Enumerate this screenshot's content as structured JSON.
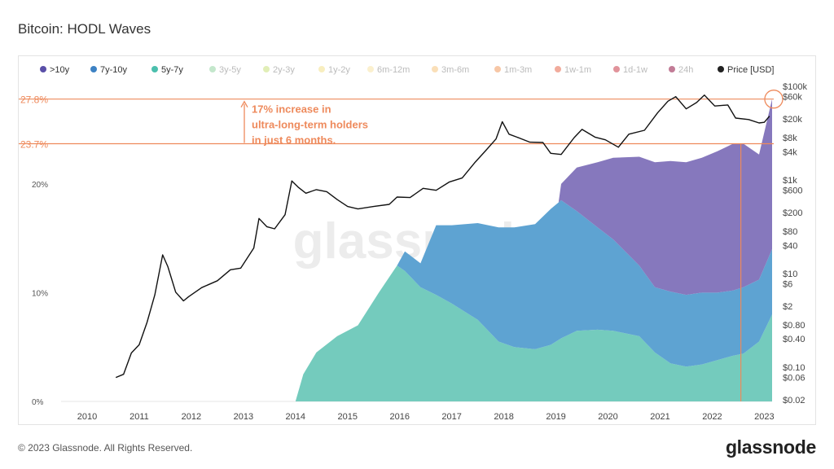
{
  "header": {
    "title": "Bitcoin: HODL Waves"
  },
  "footer": {
    "copyright": "© 2023 Glassnode. All Rights Reserved.",
    "logo_text": "glassnode"
  },
  "watermark": "glassnode",
  "annotation": {
    "lines": [
      "17% increase in",
      "ultra-long-term holders",
      "in just 6 months."
    ],
    "color": "#ee8a5c"
  },
  "chart_data": {
    "type": "area",
    "title": "Bitcoin: HODL Waves",
    "legend": {
      "position": "top",
      "items": [
        {
          "label": ">10y",
          "color": "#5a4fa8",
          "active": true
        },
        {
          "label": "7y-10y",
          "color": "#3d82c4",
          "active": true
        },
        {
          "label": "5y-7y",
          "color": "#4bbfad",
          "active": true
        },
        {
          "label": "3y-5y",
          "color": "#94d3a2",
          "active": false
        },
        {
          "label": "2y-3y",
          "color": "#c8e07c",
          "active": false
        },
        {
          "label": "1y-2y",
          "color": "#f3e08a",
          "active": false
        },
        {
          "label": "6m-12m",
          "color": "#f7e3a5",
          "active": false
        },
        {
          "label": "3m-6m",
          "color": "#f6c47d",
          "active": false
        },
        {
          "label": "1m-3m",
          "color": "#f0995c",
          "active": false
        },
        {
          "label": "1w-1m",
          "color": "#e5664b",
          "active": false
        },
        {
          "label": "1d-1w",
          "color": "#c93a48",
          "active": false
        },
        {
          "label": "24h",
          "color": "#8f1040",
          "active": false
        },
        {
          "label": "Price [USD]",
          "color": "#222222",
          "active": true
        }
      ]
    },
    "x_ticks": [
      "2010",
      "2011",
      "2012",
      "2013",
      "2014",
      "2015",
      "2016",
      "2017",
      "2018",
      "2019",
      "2020",
      "2021",
      "2022",
      "2023"
    ],
    "xlim": [
      2009.5,
      2023.15
    ],
    "y_left": {
      "ticks": [
        {
          "value": 0,
          "label": "0%"
        },
        {
          "value": 10,
          "label": "10%"
        },
        {
          "value": 20,
          "label": "20%"
        }
      ],
      "ylim": [
        0,
        29.5
      ]
    },
    "y_right": {
      "scale": "log",
      "ticks": [
        {
          "value": 0.02,
          "label": "$0.02"
        },
        {
          "value": 0.06,
          "label": "$0.06"
        },
        {
          "value": 0.1,
          "label": "$0.10"
        },
        {
          "value": 0.4,
          "label": "$0.40"
        },
        {
          "value": 0.8,
          "label": "$0.80"
        },
        {
          "value": 2,
          "label": "$2"
        },
        {
          "value": 6,
          "label": "$6"
        },
        {
          "value": 10,
          "label": "$10"
        },
        {
          "value": 40,
          "label": "$40"
        },
        {
          "value": 80,
          "label": "$80"
        },
        {
          "value": 200,
          "label": "$200"
        },
        {
          "value": 600,
          "label": "$600"
        },
        {
          "value": 1000,
          "label": "$1k"
        },
        {
          "value": 4000,
          "label": "$4k"
        },
        {
          "value": 8000,
          "label": "$8k"
        },
        {
          "value": 20000,
          "label": "$20k"
        },
        {
          "value": 60000,
          "label": "$60k"
        },
        {
          "value": 100000,
          "label": "$100k"
        }
      ]
    },
    "reference_lines": [
      {
        "value": 27.8,
        "label": "27.8%",
        "color": "#ee8a5c"
      },
      {
        "value": 23.7,
        "label": "23.7%",
        "color": "#ee8a5c"
      }
    ],
    "reference_date": 2022.55,
    "stacked_series": [
      {
        "name": "5y-7y",
        "color": "#74cbbd",
        "points": [
          [
            2009.5,
            0
          ],
          [
            2014.0,
            0
          ],
          [
            2014.15,
            2.5
          ],
          [
            2014.4,
            4.5
          ],
          [
            2014.8,
            6.0
          ],
          [
            2015.2,
            7.0
          ],
          [
            2015.6,
            10.0
          ],
          [
            2015.95,
            12.5
          ],
          [
            2016.1,
            12.0
          ],
          [
            2016.4,
            10.5
          ],
          [
            2016.7,
            9.8
          ],
          [
            2017.0,
            9.0
          ],
          [
            2017.5,
            7.5
          ],
          [
            2017.9,
            5.5
          ],
          [
            2018.2,
            5.0
          ],
          [
            2018.6,
            4.8
          ],
          [
            2018.9,
            5.2
          ],
          [
            2019.1,
            5.8
          ],
          [
            2019.4,
            6.5
          ],
          [
            2019.8,
            6.6
          ],
          [
            2020.1,
            6.5
          ],
          [
            2020.6,
            6.0
          ],
          [
            2020.9,
            4.5
          ],
          [
            2021.2,
            3.5
          ],
          [
            2021.5,
            3.2
          ],
          [
            2021.8,
            3.4
          ],
          [
            2022.1,
            3.8
          ],
          [
            2022.4,
            4.2
          ],
          [
            2022.6,
            4.4
          ],
          [
            2022.9,
            5.5
          ],
          [
            2023.15,
            8.0
          ]
        ]
      },
      {
        "name": "7y-10y",
        "color": "#5ea3d2",
        "points": [
          [
            2009.5,
            0
          ],
          [
            2015.95,
            0
          ],
          [
            2016.1,
            1.8
          ],
          [
            2016.4,
            2.2
          ],
          [
            2016.7,
            6.4
          ],
          [
            2017.0,
            7.2
          ],
          [
            2017.5,
            8.9
          ],
          [
            2017.9,
            10.5
          ],
          [
            2018.2,
            11.0
          ],
          [
            2018.6,
            11.5
          ],
          [
            2018.9,
            12.5
          ],
          [
            2019.1,
            12.7
          ],
          [
            2019.4,
            11.0
          ],
          [
            2019.8,
            9.4
          ],
          [
            2020.1,
            8.4
          ],
          [
            2020.6,
            6.5
          ],
          [
            2020.9,
            6.0
          ],
          [
            2021.2,
            6.6
          ],
          [
            2021.5,
            6.6
          ],
          [
            2021.8,
            6.6
          ],
          [
            2022.1,
            6.2
          ],
          [
            2022.4,
            6.0
          ],
          [
            2022.6,
            6.1
          ],
          [
            2022.9,
            5.7
          ],
          [
            2023.15,
            6.0
          ]
        ]
      },
      {
        "name": ">10y",
        "color": "#8678bd",
        "points": [
          [
            2009.5,
            0
          ],
          [
            2019.05,
            0
          ],
          [
            2019.1,
            1.5
          ],
          [
            2019.4,
            4.0
          ],
          [
            2019.8,
            6.0
          ],
          [
            2020.1,
            7.5
          ],
          [
            2020.6,
            10.0
          ],
          [
            2020.9,
            11.5
          ],
          [
            2021.2,
            12.0
          ],
          [
            2021.5,
            12.2
          ],
          [
            2021.8,
            12.4
          ],
          [
            2022.1,
            13.0
          ],
          [
            2022.4,
            13.5
          ],
          [
            2022.6,
            13.2
          ],
          [
            2022.9,
            11.5
          ],
          [
            2023.15,
            13.8
          ]
        ]
      }
    ],
    "price_series": {
      "name": "Price [USD]",
      "color": "#111111",
      "points": [
        [
          2010.55,
          0.06
        ],
        [
          2010.7,
          0.07
        ],
        [
          2010.85,
          0.2
        ],
        [
          2011.0,
          0.3
        ],
        [
          2011.15,
          0.9
        ],
        [
          2011.3,
          3.5
        ],
        [
          2011.45,
          25
        ],
        [
          2011.55,
          14
        ],
        [
          2011.7,
          4
        ],
        [
          2011.85,
          2.6
        ],
        [
          2011.95,
          3.2
        ],
        [
          2012.2,
          5
        ],
        [
          2012.5,
          7
        ],
        [
          2012.75,
          12
        ],
        [
          2012.95,
          13
        ],
        [
          2013.2,
          35
        ],
        [
          2013.3,
          150
        ],
        [
          2013.45,
          100
        ],
        [
          2013.6,
          90
        ],
        [
          2013.8,
          180
        ],
        [
          2013.93,
          950
        ],
        [
          2014.05,
          700
        ],
        [
          2014.2,
          520
        ],
        [
          2014.4,
          620
        ],
        [
          2014.6,
          560
        ],
        [
          2014.8,
          380
        ],
        [
          2015.0,
          270
        ],
        [
          2015.2,
          240
        ],
        [
          2015.5,
          270
        ],
        [
          2015.8,
          300
        ],
        [
          2015.95,
          430
        ],
        [
          2016.2,
          420
        ],
        [
          2016.45,
          660
        ],
        [
          2016.7,
          600
        ],
        [
          2016.95,
          900
        ],
        [
          2017.2,
          1100
        ],
        [
          2017.45,
          2400
        ],
        [
          2017.65,
          4200
        ],
        [
          2017.85,
          7500
        ],
        [
          2017.97,
          17500
        ],
        [
          2018.1,
          9500
        ],
        [
          2018.25,
          8200
        ],
        [
          2018.5,
          6400
        ],
        [
          2018.75,
          6300
        ],
        [
          2018.9,
          3700
        ],
        [
          2019.1,
          3500
        ],
        [
          2019.35,
          8000
        ],
        [
          2019.5,
          12000
        ],
        [
          2019.75,
          8200
        ],
        [
          2019.95,
          7200
        ],
        [
          2020.2,
          5000
        ],
        [
          2020.4,
          9500
        ],
        [
          2020.7,
          11500
        ],
        [
          2020.95,
          27000
        ],
        [
          2021.15,
          48000
        ],
        [
          2021.3,
          60000
        ],
        [
          2021.5,
          33000
        ],
        [
          2021.7,
          45000
        ],
        [
          2021.85,
          65000
        ],
        [
          2022.05,
          38000
        ],
        [
          2022.3,
          40000
        ],
        [
          2022.45,
          21000
        ],
        [
          2022.7,
          19500
        ],
        [
          2022.9,
          16500
        ],
        [
          2023.0,
          17000
        ],
        [
          2023.1,
          23000
        ]
      ]
    }
  }
}
